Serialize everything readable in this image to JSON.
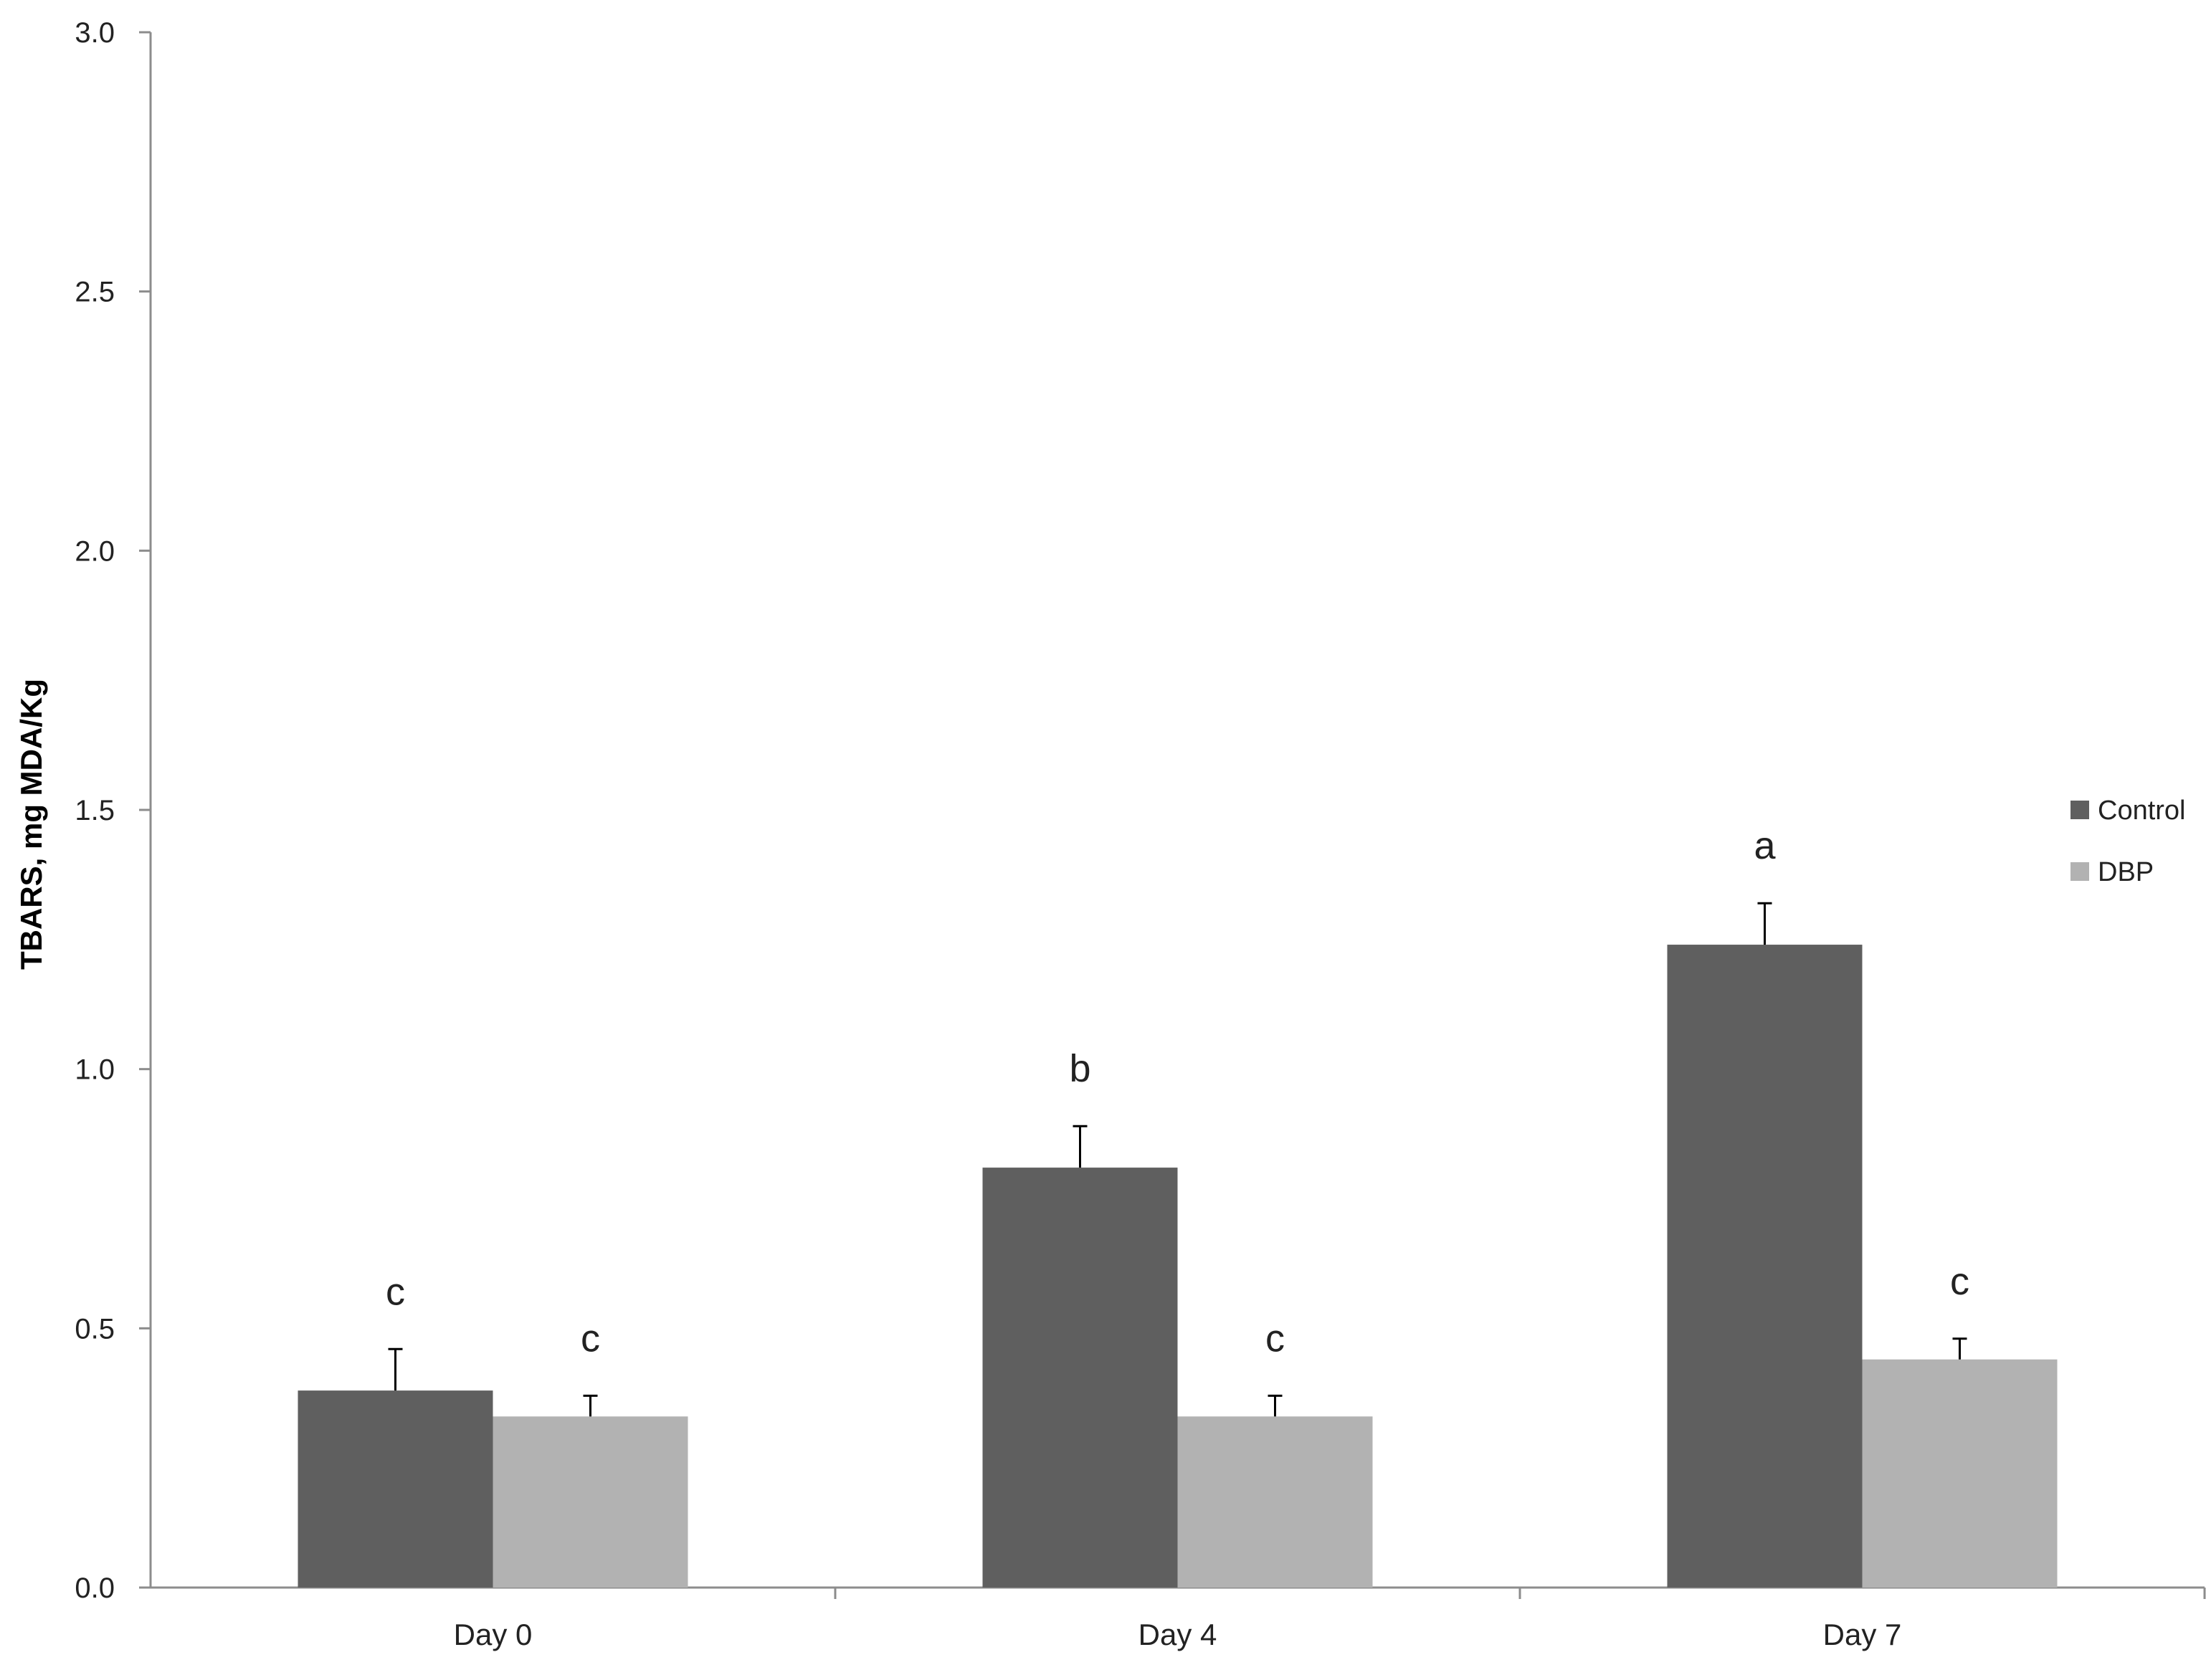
{
  "chart_data": {
    "type": "bar",
    "title": "",
    "xlabel": "",
    "ylabel": "TBARS, mg MDA/Kg",
    "ylim": [
      0,
      3.0
    ],
    "yticks": [
      "0.0",
      "0.5",
      "1.0",
      "1.5",
      "2.0",
      "2.5",
      "3.0"
    ],
    "grid": false,
    "legend_position": "right",
    "categories": [
      "Day 0",
      "Day 4",
      "Day 7"
    ],
    "series": [
      {
        "name": "Control",
        "color": "#5f5f5f",
        "values": [
          0.38,
          0.81,
          1.24
        ],
        "errors": [
          0.08,
          0.08,
          0.08
        ],
        "letters": [
          "c",
          "b",
          "a"
        ]
      },
      {
        "name": "DBP",
        "color": "#b2b2b2",
        "values": [
          0.33,
          0.33,
          0.44
        ],
        "errors": [
          0.04,
          0.04,
          0.04
        ],
        "letters": [
          "c",
          "c",
          "c"
        ]
      }
    ]
  }
}
